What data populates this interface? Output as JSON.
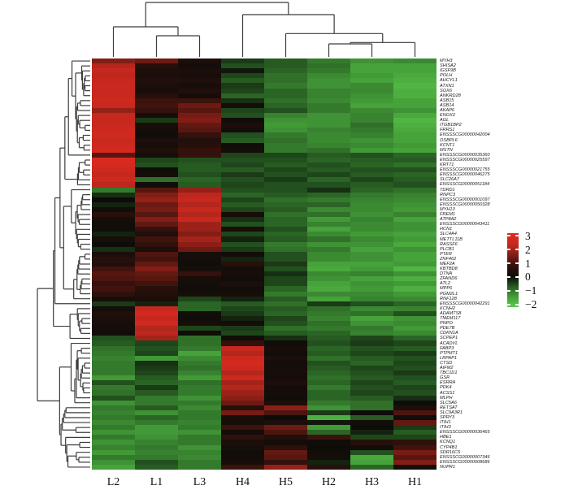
{
  "chart_data": {
    "type": "heatmap",
    "title": "",
    "xlabel": "",
    "ylabel": "",
    "legend_position": "right",
    "grid": false,
    "columns": [
      "L2",
      "L1",
      "L3",
      "H4",
      "H5",
      "H2",
      "H3",
      "H1"
    ],
    "rows": [
      "MYH3",
      "SHISA2",
      "IGSF9B",
      "POLH",
      "AHCYL1",
      "ATXN1",
      "SOX6",
      "ANKRD28",
      "ASB15",
      "ASB14",
      "AKAP6",
      "ENOX2",
      "AGL",
      "ITGB1BP2",
      "FRRS1",
      "ENSSSCG00000042004",
      "OSBPL6",
      "KCNT1",
      "MSTN",
      "ENSSSCG00000035360",
      "ENSSSCG00000025597",
      "KRT71",
      "ENSSSCG00000021755",
      "ENSSSCG00000046275",
      "SLC26A7",
      "ENSSSCG00000051184",
      "TDRD1",
      "RNPC3",
      "ENSSSCG00000001097",
      "ENSSSCG00000050328",
      "MYH13",
      "FREM1",
      "ATP8A2",
      "ENSSSCG00000043411",
      "HCN1",
      "SLC4A4",
      "METTL11B",
      "RASSF6",
      "PLCB1",
      "PTER",
      "ZNF462",
      "MEF2A",
      "KBTBD8",
      "DTNA",
      "ZFAND6",
      "ATL2",
      "MPP6",
      "PGM2L1",
      "RNF128",
      "ENSSSCG00000042291",
      "KCNH2",
      "ADAMTS8",
      "TMEM117",
      "PNPO",
      "PDE7B",
      "CDKN1A",
      "SCPEP1",
      "ACADVL",
      "FABP3",
      "PTPMT1",
      "LRPAP1",
      "CTSD",
      "AIFM2",
      "TBC1D1",
      "GSR",
      "ESRRA",
      "PDK4",
      "ACSS1",
      "MLPH",
      "SLC5A6",
      "RETSAT",
      "SLC9A3R1",
      "SPRY3",
      "ITIH1",
      "ITIH3",
      "ENSSSCG00000036465",
      "HBE1",
      "KCNQ1",
      "CYP4B1",
      "SDR16C5",
      "ENSSSCG00000007346",
      "ENSSSCG00000008686",
      "NUPR1"
    ],
    "values": [
      [
        1.6,
        1.4,
        0.4,
        -0.4,
        -0.7,
        -1.0,
        -1.3,
        -1.2
      ],
      [
        2.2,
        0.6,
        0.2,
        -0.6,
        -0.7,
        -0.9,
        -1.5,
        -1.5
      ],
      [
        2.4,
        0.4,
        0.4,
        -0.1,
        -0.8,
        -1.0,
        -1.5,
        -1.5
      ],
      [
        2.3,
        0.4,
        0.3,
        -0.5,
        -0.9,
        -1.2,
        -1.4,
        -1.6
      ],
      [
        2.4,
        0.5,
        0.5,
        -0.7,
        -0.9,
        -1.3,
        -1.5,
        -1.7
      ],
      [
        2.5,
        0.4,
        0.3,
        -0.4,
        -1.0,
        -1.3,
        -1.2,
        -1.8
      ],
      [
        2.5,
        0.3,
        0.5,
        -0.5,
        -0.8,
        -1.1,
        -1.2,
        -1.7
      ],
      [
        2.5,
        0.6,
        0.2,
        -0.8,
        -0.8,
        -1.1,
        -1.3,
        -1.7
      ],
      [
        2.6,
        0.9,
        0.9,
        -0.3,
        -0.9,
        -1.2,
        -1.4,
        -1.5
      ],
      [
        2.5,
        1.0,
        1.4,
        0.2,
        -0.8,
        -1.0,
        -1.5,
        -1.5
      ],
      [
        1.8,
        0.8,
        1.2,
        -0.5,
        -0.6,
        -1.0,
        -1.2,
        -1.3
      ],
      [
        2.4,
        0.3,
        1.5,
        -0.6,
        -1.1,
        -1.3,
        -1.1,
        -1.6
      ],
      [
        2.4,
        -0.4,
        1.6,
        0.1,
        -1.3,
        -1.3,
        -1.1,
        -1.8
      ],
      [
        2.5,
        0.3,
        1.3,
        0.4,
        -1.4,
        -1.3,
        -0.9,
        -1.7
      ],
      [
        2.6,
        0.2,
        1.2,
        0.2,
        -1.3,
        -1.1,
        -1.0,
        -1.6
      ],
      [
        2.7,
        0.1,
        0.8,
        -0.6,
        -1.0,
        -1.2,
        -1.1,
        -1.5
      ],
      [
        2.5,
        0.4,
        0.5,
        -0.7,
        -0.9,
        -1.2,
        -1.3,
        -1.5
      ],
      [
        2.6,
        0.3,
        0.6,
        0.1,
        -1.0,
        -1.1,
        -1.2,
        -1.4
      ],
      [
        2.8,
        0.5,
        0.8,
        0.2,
        -1.0,
        -0.9,
        -1.4,
        -1.5
      ],
      [
        1.2,
        0.2,
        0.8,
        -0.5,
        -0.5,
        -0.7,
        -0.6,
        -0.8
      ],
      [
        3.0,
        -0.5,
        -0.6,
        -0.6,
        -0.6,
        -0.8,
        -0.7,
        -0.7
      ],
      [
        2.9,
        -0.6,
        -0.7,
        -0.5,
        -0.7,
        -0.6,
        -0.8,
        -0.9
      ],
      [
        2.6,
        0.1,
        -0.7,
        -0.7,
        -0.5,
        -0.7,
        -0.6,
        -0.6
      ],
      [
        2.4,
        0.2,
        -0.6,
        -0.4,
        -0.6,
        -0.5,
        -0.7,
        -0.8
      ],
      [
        2.6,
        -0.9,
        -0.8,
        -0.6,
        -0.4,
        -0.8,
        -0.5,
        -0.7
      ],
      [
        2.3,
        0.1,
        -0.7,
        -0.5,
        -0.6,
        -0.6,
        -0.7,
        -0.6
      ],
      [
        -1.0,
        1.2,
        1.8,
        -0.6,
        -0.6,
        -0.3,
        -0.8,
        -0.9
      ],
      [
        -0.3,
        1.6,
        2.3,
        -0.8,
        -0.7,
        -0.8,
        -1.0,
        -1.1
      ],
      [
        0.0,
        1.8,
        2.4,
        -0.5,
        -0.9,
        -1.0,
        -1.1,
        -1.2
      ],
      [
        -0.2,
        1.4,
        2.2,
        -0.7,
        -0.8,
        -0.8,
        -1.2,
        -1.3
      ],
      [
        0.1,
        1.5,
        2.4,
        -0.5,
        -0.7,
        -1.2,
        -1.2,
        -1.4
      ],
      [
        0.6,
        1.2,
        2.2,
        0.2,
        -0.9,
        -0.9,
        -1.3,
        -1.1
      ],
      [
        0.3,
        1.6,
        2.5,
        -0.3,
        -0.8,
        -1.4,
        -1.1,
        -1.5
      ],
      [
        0.1,
        1.3,
        1.9,
        -0.6,
        -0.8,
        -1.1,
        -1.2,
        -1.3
      ],
      [
        0.1,
        0.8,
        1.9,
        0.3,
        -0.6,
        -1.5,
        -1.2,
        -1.3
      ],
      [
        -0.2,
        0.5,
        1.6,
        -0.5,
        -0.8,
        -1.2,
        -1.4,
        -1.5
      ],
      [
        0.3,
        1.0,
        2.0,
        -0.2,
        -0.7,
        -0.9,
        -1.2,
        -1.4
      ],
      [
        0.0,
        0.7,
        1.7,
        -0.6,
        -1.0,
        -1.3,
        -1.3,
        -1.6
      ],
      [
        -0.3,
        0.4,
        1.4,
        -0.4,
        -0.9,
        -1.0,
        -1.5,
        -1.3
      ],
      [
        0.4,
        1.1,
        0.3,
        0.1,
        -0.6,
        -1.2,
        -1.3,
        -1.5
      ],
      [
        0.6,
        1.0,
        0.2,
        -0.2,
        -0.6,
        -1.2,
        -1.3,
        -1.5
      ],
      [
        0.5,
        1.3,
        0.1,
        0.6,
        -0.4,
        -1.5,
        -1.5,
        -1.4
      ],
      [
        1.0,
        1.6,
        0.3,
        0.2,
        -0.6,
        -1.6,
        -1.4,
        -1.8
      ],
      [
        1.2,
        1.3,
        0.8,
        0.3,
        -0.3,
        -1.2,
        -1.1,
        -1.3
      ],
      [
        1.1,
        1.2,
        0.3,
        0.1,
        -0.5,
        -1.3,
        -1.5,
        -1.7
      ],
      [
        0.8,
        1.0,
        0.2,
        0.4,
        -0.5,
        -1.5,
        -1.3,
        -1.4
      ],
      [
        1.0,
        0.6,
        0.1,
        0.2,
        -0.8,
        -1.6,
        -1.4,
        -1.7
      ],
      [
        0.7,
        0.5,
        0.3,
        0.3,
        -1.0,
        -1.2,
        -1.2,
        -1.4
      ],
      [
        0.3,
        0.4,
        -0.5,
        -0.2,
        -0.7,
        -1.5,
        -1.1,
        -1.2
      ],
      [
        -0.4,
        -0.2,
        -0.8,
        -0.7,
        -0.9,
        -0.4,
        -0.6,
        -0.8
      ],
      [
        0.2,
        2.4,
        -0.8,
        -0.5,
        -0.7,
        -0.9,
        -1.2,
        -1.1
      ],
      [
        0.5,
        2.8,
        0.2,
        -0.4,
        -0.8,
        -1.0,
        -0.9,
        -0.6
      ],
      [
        0.4,
        2.4,
        0.1,
        -0.2,
        -0.5,
        -1.1,
        -1.5,
        -1.3
      ],
      [
        0.3,
        2.7,
        0.3,
        0.2,
        -0.6,
        -0.9,
        -1.3,
        -1.2
      ],
      [
        0.2,
        2.2,
        -0.5,
        -0.4,
        -0.9,
        -1.0,
        -1.0,
        -1.4
      ],
      [
        0.1,
        2.3,
        0.1,
        -0.5,
        -0.7,
        -0.8,
        -1.1,
        -1.2
      ],
      [
        -0.6,
        2.0,
        -0.9,
        0.1,
        -0.3,
        -0.7,
        -0.5,
        -0.8
      ],
      [
        -0.7,
        -0.5,
        -0.9,
        0.8,
        0.1,
        -0.6,
        -0.4,
        -0.5
      ],
      [
        -0.9,
        -0.6,
        -1.0,
        2.4,
        0.3,
        -0.8,
        -0.6,
        -0.7
      ],
      [
        -1.0,
        -0.5,
        -1.5,
        2.2,
        0.1,
        -0.7,
        -0.5,
        -0.4
      ],
      [
        -1.1,
        -1.4,
        -1.2,
        2.6,
        0.4,
        -0.9,
        -0.7,
        -0.6
      ],
      [
        -1.0,
        -0.3,
        -1.0,
        2.8,
        0.2,
        -0.6,
        -0.8,
        -0.5
      ],
      [
        -1.0,
        -0.4,
        -0.9,
        2.6,
        0.2,
        -0.7,
        -0.5,
        -0.6
      ],
      [
        -1.0,
        -0.5,
        -1.1,
        2.2,
        0.3,
        -0.8,
        -0.6,
        -0.4
      ],
      [
        -1.4,
        -0.7,
        -1.4,
        2.6,
        0.2,
        -0.9,
        -0.7,
        -0.6
      ],
      [
        -0.6,
        -0.8,
        -0.9,
        2.0,
        0.4,
        -0.8,
        -0.5,
        -0.7
      ],
      [
        -1.0,
        -0.4,
        -1.0,
        2.2,
        0.2,
        -1.0,
        -0.6,
        -0.5
      ],
      [
        -0.9,
        -0.7,
        -1.0,
        1.9,
        0.2,
        -0.8,
        -0.5,
        -0.6
      ],
      [
        -0.6,
        -1.0,
        -1.3,
        1.7,
        0.1,
        -0.8,
        -0.7,
        -0.3
      ],
      [
        -1.3,
        -1.0,
        -1.0,
        1.4,
        0.4,
        -1.0,
        -0.9,
        0.0
      ],
      [
        -1.0,
        -0.7,
        -1.2,
        0.6,
        1.7,
        -1.3,
        -0.9,
        0.4
      ],
      [
        -1.1,
        -1.3,
        -1.0,
        1.5,
        1.1,
        -0.4,
        0.0,
        1.1
      ],
      [
        -1.0,
        -0.8,
        -1.0,
        0.3,
        0.0,
        -1.7,
        -0.7,
        0.1
      ],
      [
        -1.2,
        -1.0,
        -1.1,
        0.3,
        0.4,
        -0.1,
        0.1,
        1.3
      ],
      [
        -1.0,
        -1.4,
        -1.0,
        0.9,
        1.4,
        -1.4,
        0.0,
        -0.4
      ],
      [
        -1.3,
        -1.4,
        -1.3,
        0.2,
        1.1,
        -0.8,
        -0.2,
        -0.7
      ],
      [
        -1.0,
        -1.3,
        -1.0,
        0.7,
        0.5,
        0.9,
        -0.5,
        -0.5
      ],
      [
        -1.3,
        -1.1,
        -1.0,
        0.4,
        0.2,
        0.1,
        0.6,
        0.7
      ],
      [
        -1.1,
        -1.0,
        -1.3,
        0.3,
        0.7,
        0.0,
        0.2,
        1.0
      ],
      [
        -1.4,
        -1.1,
        -1.1,
        0.1,
        1.3,
        0.1,
        -0.6,
        1.5
      ],
      [
        -1.0,
        -1.0,
        -1.2,
        0.2,
        1.2,
        0.2,
        -1.6,
        1.2
      ],
      [
        -1.3,
        -0.6,
        -1.0,
        0.3,
        0.8,
        -0.2,
        -1.5,
        1.6
      ],
      [
        -1.5,
        -0.7,
        -1.0,
        0.9,
        1.8,
        0.6,
        -0.8,
        0.2
      ]
    ],
    "colorbar": {
      "tick_labels": [
        "3",
        "2",
        "1",
        "0",
        "−1",
        "−2"
      ],
      "tick_values": [
        3,
        2,
        1,
        0,
        -1,
        -2
      ],
      "vmax": 3.18,
      "vmin": -2.18,
      "high_color": "#e12a20",
      "mid_color": "#0d0c08",
      "low_color": "#61cc52"
    },
    "colormap_anchors": [
      [
        3.2,
        [
          225,
          42,
          32
        ]
      ],
      [
        2.4,
        [
          198,
          40,
          30
        ]
      ],
      [
        1.6,
        [
          130,
          30,
          22
        ]
      ],
      [
        1.0,
        [
          66,
          19,
          13
        ]
      ],
      [
        0.5,
        [
          32,
          15,
          10
        ]
      ],
      [
        0.0,
        [
          13,
          12,
          8
        ]
      ],
      [
        -0.5,
        [
          30,
          70,
          26
        ]
      ],
      [
        -1.0,
        [
          52,
          122,
          45
        ]
      ],
      [
        -1.5,
        [
          70,
          162,
          58
        ]
      ],
      [
        -2.0,
        [
          88,
          194,
          73
        ]
      ],
      [
        -2.3,
        [
          97,
          204,
          82
        ]
      ]
    ],
    "column_dendrogram": {
      "merges": [
        {
          "a": 1,
          "b": 2,
          "h": 26.0
        },
        {
          "a": 0,
          "b": "m0",
          "h": 37.0
        },
        {
          "a": 5,
          "b": 6,
          "h": 16.0
        },
        {
          "a": "m2",
          "b": 7,
          "h": 17.7
        },
        {
          "a": 4,
          "b": "m3",
          "h": 28.7
        },
        {
          "a": 3,
          "b": "m4",
          "h": 52.0
        },
        {
          "a": "m1",
          "b": "m5",
          "h": 67.0
        }
      ]
    },
    "dendrogram_line_color": "#3c3c3c"
  }
}
